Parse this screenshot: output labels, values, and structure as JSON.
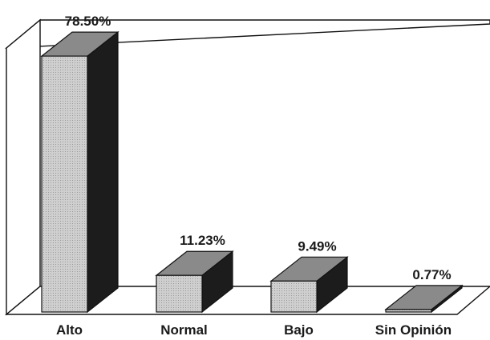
{
  "chart_data": {
    "type": "bar",
    "style": "3d",
    "categories": [
      "Alto",
      "Normal",
      "Bajo",
      "Sin Opinión"
    ],
    "values": [
      78.5,
      11.23,
      9.49,
      0.77
    ],
    "value_labels": [
      "78.50%",
      "11.23%",
      "9.49%",
      "0.77%"
    ],
    "ylim": [
      0,
      80
    ],
    "grid": false,
    "legend": "none",
    "colors": {
      "front": "#c4c4c4",
      "top": "#8a8a8a",
      "side": "#1c1c1c",
      "outline": "#111111"
    }
  }
}
